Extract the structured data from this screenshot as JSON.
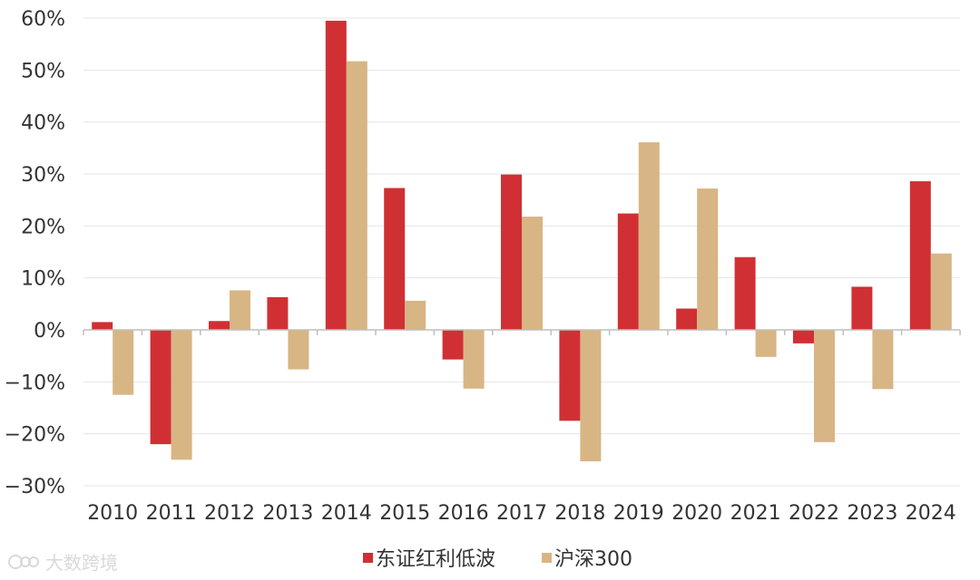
{
  "chart_data": {
    "type": "bar",
    "title": "",
    "xlabel": "",
    "ylabel": "",
    "ylim": [
      -30,
      60
    ],
    "y_ticks": [
      60,
      50,
      40,
      30,
      20,
      10,
      0,
      -10,
      -20,
      -30
    ],
    "y_tick_labels": [
      "60%",
      "50%",
      "40%",
      "30%",
      "20%",
      "10%",
      "0%",
      "−10%",
      "−20%",
      "−30%"
    ],
    "categories": [
      "2010",
      "2011",
      "2012",
      "2013",
      "2014",
      "2015",
      "2016",
      "2017",
      "2018",
      "2019",
      "2020",
      "2021",
      "2022",
      "2023",
      "2024"
    ],
    "series": [
      {
        "name": "东证红利低波",
        "color": "#d03034",
        "values": [
          1.5,
          -22.0,
          1.7,
          6.3,
          59.5,
          27.3,
          -5.7,
          29.9,
          -17.5,
          22.4,
          4.1,
          14.0,
          -2.6,
          8.3,
          28.6
        ]
      },
      {
        "name": "沪深300",
        "color": "#d8b584",
        "values": [
          -12.5,
          -25.0,
          7.6,
          -7.6,
          51.7,
          5.6,
          -11.3,
          21.8,
          -25.3,
          36.1,
          27.2,
          -5.2,
          -21.6,
          -11.4,
          14.7
        ]
      }
    ],
    "legend_position": "bottom-center"
  },
  "watermark": {
    "text": "大数跨境"
  }
}
